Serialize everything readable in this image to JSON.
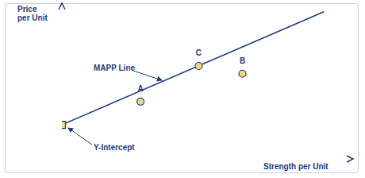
{
  "chart_data": {
    "type": "scatter",
    "x_label": "Strength per Unit",
    "y_label": "Price per Unit",
    "xlim": [
      0,
      100
    ],
    "ylim": [
      0,
      100
    ],
    "tick_labels": false,
    "series": [
      {
        "name": "MAPP Line",
        "type": "line",
        "color": "#1b3a7a",
        "x": [
          0,
          90
        ],
        "values": [
          22,
          95
        ]
      },
      {
        "name": "Y-Intercept",
        "type": "scatter",
        "marker": "square",
        "color": "#f3d58a",
        "x": [
          0
        ],
        "values": [
          22
        ]
      },
      {
        "type": "scatter",
        "marker": "circle",
        "color": "#f3d58a",
        "labels": [
          "A",
          "B",
          "C"
        ],
        "x": [
          27,
          62,
          47
        ],
        "values": [
          37,
          55,
          60
        ]
      }
    ]
  }
}
